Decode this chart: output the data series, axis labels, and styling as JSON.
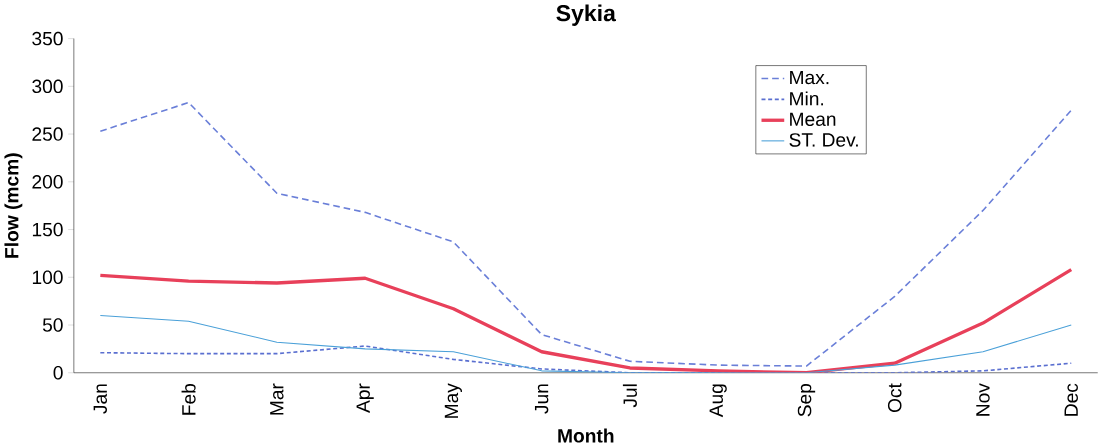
{
  "chart_data": {
    "type": "line",
    "title": "Sykia",
    "xlabel": "Month",
    "ylabel": "Flow (mcm)",
    "categories": [
      "Jan",
      "Feb",
      "Mar",
      "Apr",
      "May",
      "Jun",
      "Jul",
      "Aug",
      "Sep",
      "Oct",
      "Nov",
      "Dec"
    ],
    "series": [
      {
        "name": "Max.",
        "color": "#6a7fd8",
        "line_style": "dashed",
        "values": [
          253,
          283,
          188,
          168,
          137,
          40,
          12,
          8,
          7,
          80,
          170,
          275
        ]
      },
      {
        "name": "Min.",
        "color": "#5a6fd0",
        "line_style": "dotted",
        "values": [
          21,
          20,
          20,
          28,
          14,
          4,
          0,
          0,
          0,
          0,
          2,
          10
        ]
      },
      {
        "name": "Mean",
        "color": "#e8405a",
        "line_style": "solid",
        "values": [
          102,
          96,
          94,
          99,
          67,
          22,
          5,
          2,
          0,
          10,
          52,
          108
        ]
      },
      {
        "name": "ST. Dev.",
        "color": "#4aa0d8",
        "line_style": "solid",
        "values": [
          60,
          54,
          32,
          25,
          22,
          2,
          0,
          0,
          0,
          8,
          22,
          50
        ]
      }
    ],
    "ylim": [
      0,
      350
    ],
    "yticks": [
      0,
      50,
      100,
      150,
      200,
      250,
      300,
      350
    ],
    "grid": false,
    "legend": "top right",
    "marker": "none"
  }
}
